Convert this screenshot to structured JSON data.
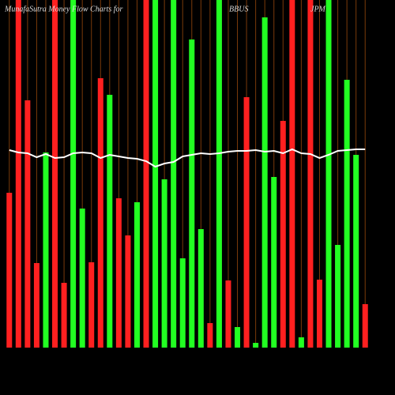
{
  "chart_data": {
    "type": "bar",
    "title": "MunafaSutra  Money Flow  Charts for",
    "symbol": "BBUS",
    "company": "JPM",
    "values": [
      196,
      440,
      313,
      107,
      247,
      440,
      82,
      440,
      176,
      108,
      341,
      320,
      189,
      142,
      184,
      440,
      440,
      213,
      440,
      113,
      390,
      150,
      31,
      440,
      85,
      26,
      317,
      6,
      418,
      216,
      287,
      440,
      13,
      440,
      86,
      440,
      130,
      339,
      244,
      55
    ],
    "colors": [
      "#ff2020",
      "#ff2020",
      "#ff2020",
      "#ff2020",
      "#22ff22",
      "#ff2020",
      "#ff2020",
      "#22ff22",
      "#22ff22",
      "#ff2020",
      "#ff2020",
      "#22ff22",
      "#ff2020",
      "#ff2020",
      "#22ff22",
      "#ff2020",
      "#22ff22",
      "#22ff22",
      "#22ff22",
      "#22ff22",
      "#22ff22",
      "#22ff22",
      "#ff2020",
      "#22ff22",
      "#ff2020",
      "#22ff22",
      "#ff2020",
      "#22ff22",
      "#22ff22",
      "#22ff22",
      "#ff2020",
      "#ff2020",
      "#22ff22",
      "#ff2020",
      "#ff2020",
      "#22ff22",
      "#22ff22",
      "#22ff22",
      "#22ff22",
      "#ff2020"
    ],
    "line": {
      "color": "#ffffff",
      "values": [
        250,
        247,
        246,
        241,
        245,
        240,
        241,
        246,
        247,
        246,
        240,
        244,
        242,
        240,
        239,
        236,
        229,
        233,
        235,
        242,
        244,
        246,
        245,
        246,
        248,
        249,
        249,
        250,
        248,
        249,
        246,
        251,
        246,
        245,
        240,
        244,
        249,
        250,
        251,
        251
      ]
    },
    "ylim": [
      0,
      440
    ],
    "grid": true,
    "grid_color": "#7a3a0a"
  }
}
